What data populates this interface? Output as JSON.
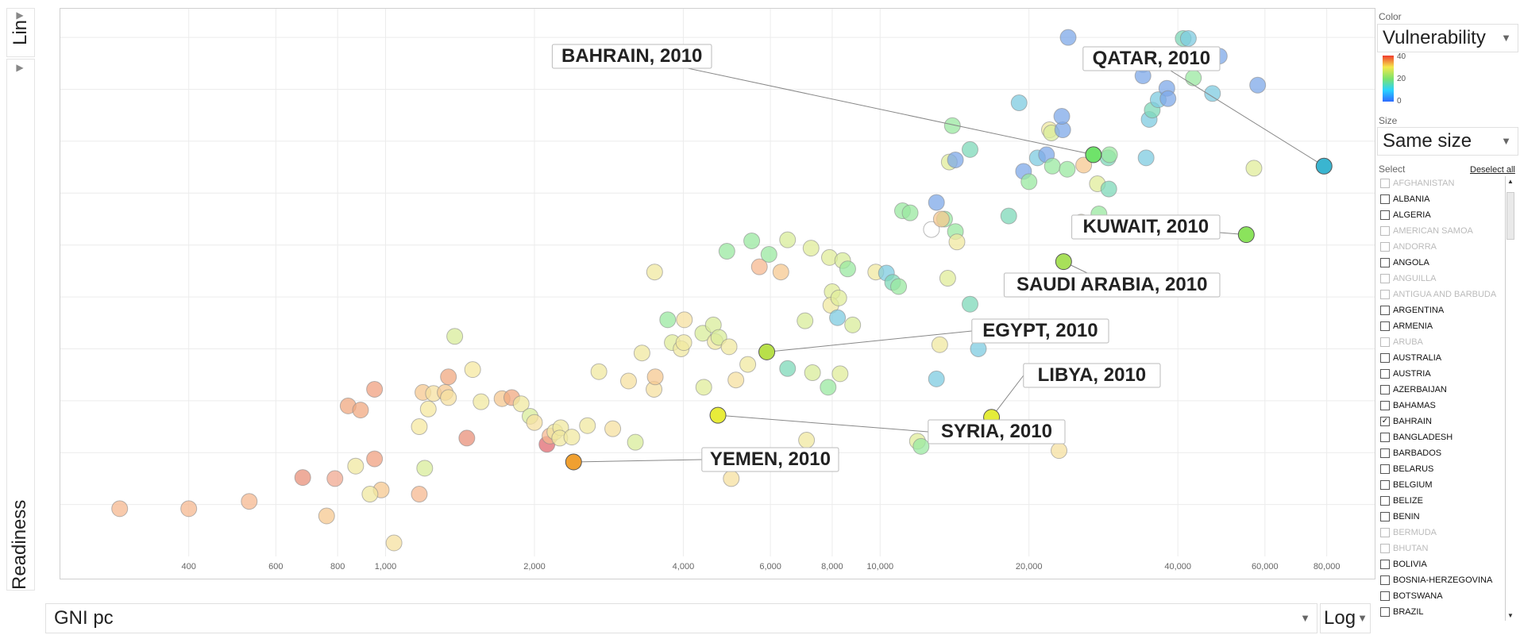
{
  "yaxis": {
    "label": "Readiness",
    "scale": "Lin"
  },
  "xaxis": {
    "label": "GNI pc",
    "scale": "Log"
  },
  "panel": {
    "color_label": "Color",
    "color_value": "Vulnerability",
    "legend_ticks": [
      "40",
      "20",
      "0"
    ],
    "size_label": "Size",
    "size_value": "Same size",
    "select_label": "Select",
    "deselect_all": "Deselect all",
    "countries": [
      {
        "name": "AFGHANISTAN",
        "dim": true,
        "checked": false
      },
      {
        "name": "ALBANIA",
        "dim": false,
        "checked": false
      },
      {
        "name": "ALGERIA",
        "dim": false,
        "checked": false
      },
      {
        "name": "AMERICAN SAMOA",
        "dim": true,
        "checked": false
      },
      {
        "name": "ANDORRA",
        "dim": true,
        "checked": false
      },
      {
        "name": "ANGOLA",
        "dim": false,
        "checked": false
      },
      {
        "name": "ANGUILLA",
        "dim": true,
        "checked": false
      },
      {
        "name": "ANTIGUA AND BARBUDA",
        "dim": true,
        "checked": false
      },
      {
        "name": "ARGENTINA",
        "dim": false,
        "checked": false
      },
      {
        "name": "ARMENIA",
        "dim": false,
        "checked": false
      },
      {
        "name": "ARUBA",
        "dim": true,
        "checked": false
      },
      {
        "name": "AUSTRALIA",
        "dim": false,
        "checked": false
      },
      {
        "name": "AUSTRIA",
        "dim": false,
        "checked": false
      },
      {
        "name": "AZERBAIJAN",
        "dim": false,
        "checked": false
      },
      {
        "name": "BAHAMAS",
        "dim": false,
        "checked": false
      },
      {
        "name": "BAHRAIN",
        "dim": false,
        "checked": true
      },
      {
        "name": "BANGLADESH",
        "dim": false,
        "checked": false
      },
      {
        "name": "BARBADOS",
        "dim": false,
        "checked": false
      },
      {
        "name": "BELARUS",
        "dim": false,
        "checked": false
      },
      {
        "name": "BELGIUM",
        "dim": false,
        "checked": false
      },
      {
        "name": "BELIZE",
        "dim": false,
        "checked": false
      },
      {
        "name": "BENIN",
        "dim": false,
        "checked": false
      },
      {
        "name": "BERMUDA",
        "dim": true,
        "checked": false
      },
      {
        "name": "BHUTAN",
        "dim": true,
        "checked": false
      },
      {
        "name": "BOLIVIA",
        "dim": false,
        "checked": false
      },
      {
        "name": "BOSNIA-HERZEGOVINA",
        "dim": false,
        "checked": false
      },
      {
        "name": "BOTSWANA",
        "dim": false,
        "checked": false
      },
      {
        "name": "BRAZIL",
        "dim": false,
        "checked": false
      }
    ]
  },
  "chart_data": {
    "type": "scatter",
    "xlabel": "GNI pc",
    "ylabel": "Readiness",
    "xscale": "log",
    "yscale": "linear",
    "xlim": [
      220,
      100000
    ],
    "ylim": [
      10,
      62
    ],
    "xticks": [
      400,
      600,
      800,
      1000,
      2000,
      4000,
      6000,
      8000,
      10000,
      20000,
      40000,
      60000,
      80000
    ],
    "xtick_labels": [
      "400",
      "600",
      "800",
      "1,000",
      "2,000",
      "4,000",
      "6,000",
      "8,000",
      "10,000",
      "20,000",
      "40,000",
      "60,000",
      "80,000"
    ],
    "yticks": [
      15,
      20,
      25,
      30,
      35,
      40,
      45,
      50,
      55,
      60
    ],
    "grid": true,
    "color_by": "Vulnerability",
    "color_range": [
      0,
      40
    ],
    "highlighted": [
      {
        "label": "BAHRAIN, 2010",
        "x": 27000,
        "y": 48.7,
        "color": "#6fe36a"
      },
      {
        "label": "QATAR, 2010",
        "x": 79000,
        "y": 47.6,
        "color": "#3ab5d0"
      },
      {
        "label": "KUWAIT, 2010",
        "x": 55000,
        "y": 41.0,
        "color": "#8be35c"
      },
      {
        "label": "SAUDI ARABIA, 2010",
        "x": 23500,
        "y": 38.4,
        "color": "#a8e05a"
      },
      {
        "label": "EGYPT, 2010",
        "x": 5900,
        "y": 29.7,
        "color": "#b8e04a"
      },
      {
        "label": "LIBYA, 2010",
        "x": 16800,
        "y": 23.4,
        "color": "#e4ec3a"
      },
      {
        "label": "SYRIA, 2010",
        "x": 4700,
        "y": 23.6,
        "color": "#e8ec3a"
      },
      {
        "label": "YEMEN, 2010",
        "x": 2400,
        "y": 19.1,
        "color": "#f0a030"
      }
    ],
    "points": [
      [
        290,
        14.6,
        "#f5b890"
      ],
      [
        400,
        14.6,
        "#f5b890"
      ],
      [
        530,
        15.3,
        "#f5b890"
      ],
      [
        760,
        13.9,
        "#f5c890"
      ],
      [
        790,
        17.5,
        "#f0a890"
      ],
      [
        680,
        17.6,
        "#e8907a"
      ],
      [
        840,
        24.5,
        "#f0a880"
      ],
      [
        890,
        24.1,
        "#f0a880"
      ],
      [
        950,
        26.1,
        "#f0a080"
      ],
      [
        950,
        19.4,
        "#f0a080"
      ],
      [
        980,
        16.4,
        "#f5c890"
      ],
      [
        930,
        16.0,
        "#f0e8a0"
      ],
      [
        870,
        18.7,
        "#f0e8a0"
      ],
      [
        1040,
        11.3,
        "#f5e0a0"
      ],
      [
        1170,
        16.0,
        "#f5b890"
      ],
      [
        1200,
        18.5,
        "#d8ec9a"
      ],
      [
        1170,
        22.5,
        "#f5e8a0"
      ],
      [
        1220,
        24.2,
        "#f5e8a0"
      ],
      [
        1190,
        25.8,
        "#f5c890"
      ],
      [
        1250,
        25.7,
        "#f5e0a0"
      ],
      [
        1320,
        25.8,
        "#f5c890"
      ],
      [
        1340,
        25.3,
        "#f5e0a0"
      ],
      [
        1340,
        27.3,
        "#f0a880"
      ],
      [
        1380,
        31.2,
        "#d8ec9a"
      ],
      [
        1500,
        28.0,
        "#f5e8a0"
      ],
      [
        1460,
        21.4,
        "#e8907a"
      ],
      [
        1560,
        24.9,
        "#f0e8a0"
      ],
      [
        1720,
        25.2,
        "#f5c890"
      ],
      [
        1800,
        25.3,
        "#f0a880"
      ],
      [
        1880,
        24.7,
        "#f0e8a0"
      ],
      [
        1960,
        23.5,
        "#d8ec9a"
      ],
      [
        2000,
        22.9,
        "#f5e0a0"
      ],
      [
        2120,
        20.8,
        "#e06a70"
      ],
      [
        2150,
        21.6,
        "#f5b890"
      ],
      [
        2200,
        22.0,
        "#f0e8a0"
      ],
      [
        2260,
        22.4,
        "#f0e8a0"
      ],
      [
        2250,
        21.4,
        "#f0e8a0"
      ],
      [
        2380,
        21.5,
        "#f0e8a0"
      ],
      [
        2560,
        22.6,
        "#f0e8a0"
      ],
      [
        2700,
        27.8,
        "#f0e8a0"
      ],
      [
        2880,
        22.3,
        "#f5e0a0"
      ],
      [
        3100,
        26.9,
        "#f5e0a0"
      ],
      [
        3200,
        21.0,
        "#d8ec9a"
      ],
      [
        3300,
        29.6,
        "#f0e8a0"
      ],
      [
        3490,
        26.1,
        "#f5e0a0"
      ],
      [
        3510,
        27.3,
        "#f5c890"
      ],
      [
        3500,
        37.4,
        "#f0e8a0"
      ],
      [
        3720,
        32.8,
        "#9ae8a0"
      ],
      [
        3800,
        30.6,
        "#e0ec9a"
      ],
      [
        3960,
        30.0,
        "#f0e8a0"
      ],
      [
        4010,
        30.6,
        "#f0e8a0"
      ],
      [
        4020,
        32.8,
        "#f5e0a0"
      ],
      [
        4380,
        31.5,
        "#d8ec9a"
      ],
      [
        4400,
        26.3,
        "#e0ec9a"
      ],
      [
        4600,
        32.3,
        "#d8ec9a"
      ],
      [
        4640,
        30.7,
        "#f0e8a0"
      ],
      [
        4720,
        31.1,
        "#d8ec9a"
      ],
      [
        4950,
        30.2,
        "#f0e8a0"
      ],
      [
        5110,
        27.0,
        "#f5e0a0"
      ],
      [
        5000,
        17.5,
        "#f5e0a0"
      ],
      [
        4900,
        39.4,
        "#9ae8a0"
      ],
      [
        5400,
        28.5,
        "#f0e8a0"
      ],
      [
        5500,
        40.4,
        "#9ae8a0"
      ],
      [
        5700,
        37.9,
        "#f5b890"
      ],
      [
        5960,
        39.1,
        "#9ae8a0"
      ],
      [
        6300,
        37.4,
        "#f5c890"
      ],
      [
        6500,
        40.5,
        "#d8ec9a"
      ],
      [
        6500,
        28.1,
        "#7ed8b8"
      ],
      [
        7050,
        32.7,
        "#d8ec9a"
      ],
      [
        7100,
        21.2,
        "#f0e8a0"
      ],
      [
        7300,
        27.7,
        "#d8ec9a"
      ],
      [
        7250,
        39.7,
        "#e0ec9a"
      ],
      [
        7900,
        38.8,
        "#e0ec9a"
      ],
      [
        8000,
        35.5,
        "#e0ec9a"
      ],
      [
        7950,
        34.2,
        "#f0e8a0"
      ],
      [
        8250,
        34.9,
        "#e0ec9a"
      ],
      [
        8400,
        38.5,
        "#d8ec9a"
      ],
      [
        8600,
        37.7,
        "#9ae8a0"
      ],
      [
        7850,
        26.3,
        "#9ae8a0"
      ],
      [
        8300,
        27.6,
        "#e0ec9a"
      ],
      [
        8800,
        32.3,
        "#d8ec9a"
      ],
      [
        8200,
        33.0,
        "#7ecbe0"
      ],
      [
        9800,
        37.4,
        "#f0e8a0"
      ],
      [
        10300,
        37.3,
        "#7ecbe0"
      ],
      [
        10600,
        36.4,
        "#7ed8b8"
      ],
      [
        10900,
        36.0,
        "#9ae8a0"
      ],
      [
        11100,
        43.3,
        "#9ae8a0"
      ],
      [
        11500,
        43.1,
        "#9ae8a0"
      ],
      [
        11900,
        21.1,
        "#e0ec9a"
      ],
      [
        12100,
        20.6,
        "#9ae8a0"
      ],
      [
        12700,
        41.5,
        "#ffffff"
      ],
      [
        13000,
        44.1,
        "#7ea8e8"
      ],
      [
        13500,
        42.5,
        "#9ae8a0"
      ],
      [
        13300,
        42.5,
        "#f5c890"
      ],
      [
        13700,
        36.8,
        "#e0ec9a"
      ],
      [
        13200,
        30.4,
        "#f0e8a0"
      ],
      [
        13000,
        27.1,
        "#7ecbe0"
      ],
      [
        14200,
        41.3,
        "#9ae8a0"
      ],
      [
        14300,
        40.3,
        "#f0e8a0"
      ],
      [
        13800,
        48.0,
        "#e0ec9a"
      ],
      [
        14200,
        48.2,
        "#7ea8e8"
      ],
      [
        14000,
        51.5,
        "#9ae8a0"
      ],
      [
        15200,
        49.2,
        "#7ed8b8"
      ],
      [
        15200,
        34.3,
        "#7ed8b8"
      ],
      [
        15800,
        30.0,
        "#7ecbe0"
      ],
      [
        18200,
        42.8,
        "#7ed8b8"
      ],
      [
        19100,
        53.7,
        "#7ecbe0"
      ],
      [
        19500,
        47.1,
        "#7ea8e8"
      ],
      [
        20000,
        46.1,
        "#9ae8a0"
      ],
      [
        20800,
        48.4,
        "#7ecbe0"
      ],
      [
        21700,
        48.7,
        "#7ea8e8"
      ],
      [
        22300,
        47.6,
        "#9ae8a0"
      ],
      [
        22000,
        51.1,
        "#f0e8a0"
      ],
      [
        22200,
        50.8,
        "#d8ec9a"
      ],
      [
        23400,
        51.1,
        "#7ea8e8"
      ],
      [
        23300,
        52.4,
        "#7ea8e8"
      ],
      [
        23900,
        47.3,
        "#9ae8a0"
      ],
      [
        23000,
        20.2,
        "#f5e0a0"
      ],
      [
        25500,
        42.2,
        "#f5e0a0"
      ],
      [
        25800,
        47.7,
        "#f5c890"
      ],
      [
        27500,
        45.9,
        "#e0ec9a"
      ],
      [
        27700,
        43.0,
        "#9ae8a0"
      ],
      [
        28900,
        48.4,
        "#7ed8b8"
      ],
      [
        29000,
        45.4,
        "#7ed8b8"
      ],
      [
        29100,
        48.7,
        "#9ae8a0"
      ],
      [
        24000,
        60.0,
        "#7ea8e8"
      ],
      [
        34000,
        57.4,
        "#7ea8e8"
      ],
      [
        34000,
        56.3,
        "#7ea8e8"
      ],
      [
        34500,
        48.4,
        "#7ecbe0"
      ],
      [
        35000,
        52.1,
        "#7ecbe0"
      ],
      [
        35500,
        53.0,
        "#7ed8b8"
      ],
      [
        36500,
        54.0,
        "#7ecbe0"
      ],
      [
        37500,
        58.0,
        "#7ea8e8"
      ],
      [
        38000,
        55.1,
        "#7ea8e8"
      ],
      [
        38200,
        54.1,
        "#7ea8e8"
      ],
      [
        40200,
        57.7,
        "#7ea8e8"
      ],
      [
        41000,
        59.9,
        "#7ed8b8"
      ],
      [
        42000,
        59.9,
        "#7ecbe0"
      ],
      [
        43000,
        56.1,
        "#9ae8a0"
      ],
      [
        47000,
        54.6,
        "#7ecbe0"
      ],
      [
        48500,
        58.2,
        "#7ea8e8"
      ],
      [
        58000,
        55.4,
        "#7ea8e8"
      ],
      [
        57000,
        47.4,
        "#e0ec9a"
      ]
    ]
  }
}
